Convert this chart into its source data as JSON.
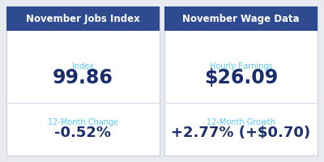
{
  "panel1_title": "November Jobs Index",
  "panel1_label1": "Index",
  "panel1_value1": "99.86",
  "panel1_label2": "12-Month Change",
  "panel1_value2": "-0.52%",
  "panel2_title": "November Wage Data",
  "panel2_label1": "Hourly Earnings",
  "panel2_value1": "$26.09",
  "panel2_label2": "12-Month Growth",
  "panel2_value2": "+2.77% (+$0.70)",
  "header_bg": "#2e4b8f",
  "header_text": "#ffffff",
  "panel_bg": "#ffffff",
  "outer_bg": "#e8eaf0",
  "label_color": "#5bc8f5",
  "value_color": "#1a2e6c",
  "divider_color": "#d0d8e8",
  "border_color": "#c8d0e0",
  "header_fontsize": 8.5,
  "label_fontsize": 7.0,
  "value1_fontsize": 17,
  "value2_fontsize": 13
}
